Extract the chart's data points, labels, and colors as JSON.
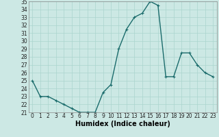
{
  "x": [
    0,
    1,
    2,
    3,
    4,
    5,
    6,
    7,
    8,
    9,
    10,
    11,
    12,
    13,
    14,
    15,
    16,
    17,
    18,
    19,
    20,
    21,
    22,
    23
  ],
  "y": [
    25.0,
    23.0,
    23.0,
    22.5,
    22.0,
    21.5,
    21.0,
    21.0,
    21.0,
    23.5,
    24.5,
    29.0,
    31.5,
    33.0,
    33.5,
    35.0,
    34.5,
    25.5,
    25.5,
    28.5,
    28.5,
    27.0,
    26.0,
    25.5
  ],
  "line_color": "#1a6b6b",
  "marker": "+",
  "marker_size": 3,
  "marker_lw": 0.8,
  "bg_color": "#cce8e4",
  "grid_color": "#aad4ce",
  "xlabel": "Humidex (Indice chaleur)",
  "ylim": [
    21,
    35
  ],
  "xlim": [
    -0.5,
    23.5
  ],
  "yticks": [
    21,
    22,
    23,
    24,
    25,
    26,
    27,
    28,
    29,
    30,
    31,
    32,
    33,
    34,
    35
  ],
  "xticks": [
    0,
    1,
    2,
    3,
    4,
    5,
    6,
    7,
    8,
    9,
    10,
    11,
    12,
    13,
    14,
    15,
    16,
    17,
    18,
    19,
    20,
    21,
    22,
    23
  ],
  "xlabel_fontsize": 7,
  "tick_fontsize": 5.5,
  "line_width": 1.0,
  "spine_color": "#888888"
}
